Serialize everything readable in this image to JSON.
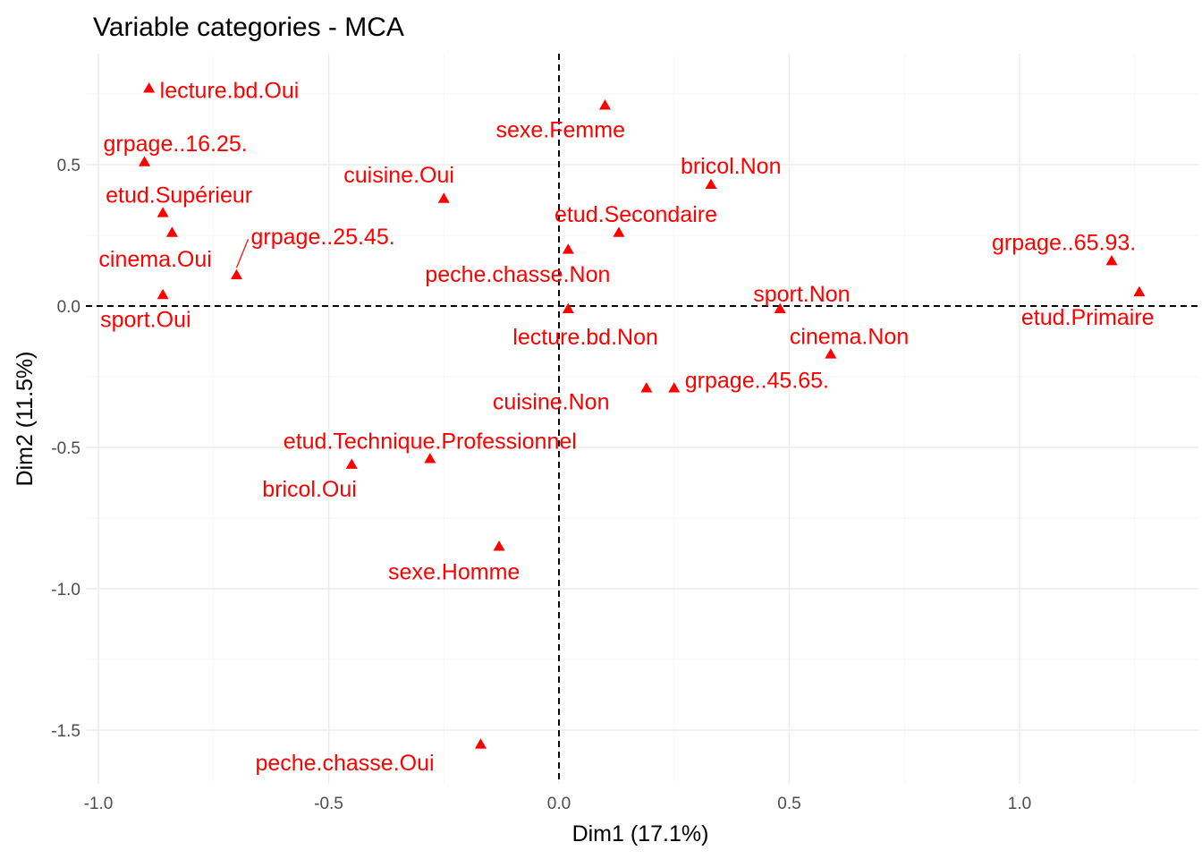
{
  "chart_data": {
    "type": "scatter",
    "title": "Variable categories - MCA",
    "xlabel": "Dim1 (17.1%)",
    "ylabel": "Dim2 (11.5%)",
    "xlim": [
      -1.0,
      1.38
    ],
    "ylim": [
      -1.65,
      0.88
    ],
    "x_ticks": [
      -1.0,
      -0.5,
      0.0,
      0.5,
      1.0
    ],
    "x_tick_labels": [
      "-1.0",
      "-0.5",
      "0.0",
      "0.5",
      "1.0"
    ],
    "y_ticks": [
      0.5,
      0.0,
      -0.5,
      -1.0,
      -1.5
    ],
    "y_tick_labels": [
      "0.5",
      "0.0",
      "-0.5",
      "-1.0",
      "-1.5"
    ],
    "reference_lines": {
      "x": 0,
      "y": 0
    },
    "marker": "triangle",
    "color": "#ff0000",
    "points": [
      {
        "label": "lecture.bd.Oui",
        "x": -0.89,
        "y": 0.77
      },
      {
        "label": "grpage..16.25.",
        "x": -0.9,
        "y": 0.51
      },
      {
        "label": "etud.Supérieur",
        "x": -0.86,
        "y": 0.33
      },
      {
        "label": "cinema.Oui",
        "x": -0.84,
        "y": 0.26
      },
      {
        "label": "grpage..25.45.",
        "x": -0.7,
        "y": 0.11
      },
      {
        "label": "sport.Oui",
        "x": -0.86,
        "y": 0.04
      },
      {
        "label": "cuisine.Oui",
        "x": -0.25,
        "y": 0.38
      },
      {
        "label": "sexe.Femme",
        "x": 0.1,
        "y": 0.71
      },
      {
        "label": "bricol.Non",
        "x": 0.33,
        "y": 0.43
      },
      {
        "label": "etud.Secondaire",
        "x": 0.13,
        "y": 0.26
      },
      {
        "label": "peche.chasse.Non",
        "x": 0.02,
        "y": 0.2
      },
      {
        "label": "lecture.bd.Non",
        "x": 0.02,
        "y": -0.01
      },
      {
        "label": "sport.Non",
        "x": 0.48,
        "y": -0.01
      },
      {
        "label": "cinema.Non",
        "x": 0.59,
        "y": -0.17
      },
      {
        "label": "grpage..65.93.",
        "x": 1.2,
        "y": 0.16
      },
      {
        "label": "etud.Primaire",
        "x": 1.26,
        "y": 0.05
      },
      {
        "label": "grpage..45.65.",
        "x": 0.25,
        "y": -0.29
      },
      {
        "label": "cuisine.Non",
        "x": 0.19,
        "y": -0.29
      },
      {
        "label": "etud.Technique.Professionnel",
        "x": -0.28,
        "y": -0.54
      },
      {
        "label": "bricol.Oui",
        "x": -0.45,
        "y": -0.56
      },
      {
        "label": "sexe.Homme",
        "x": -0.13,
        "y": -0.85
      },
      {
        "label": "peche.chasse.Oui",
        "x": -0.17,
        "y": -1.55
      }
    ]
  }
}
